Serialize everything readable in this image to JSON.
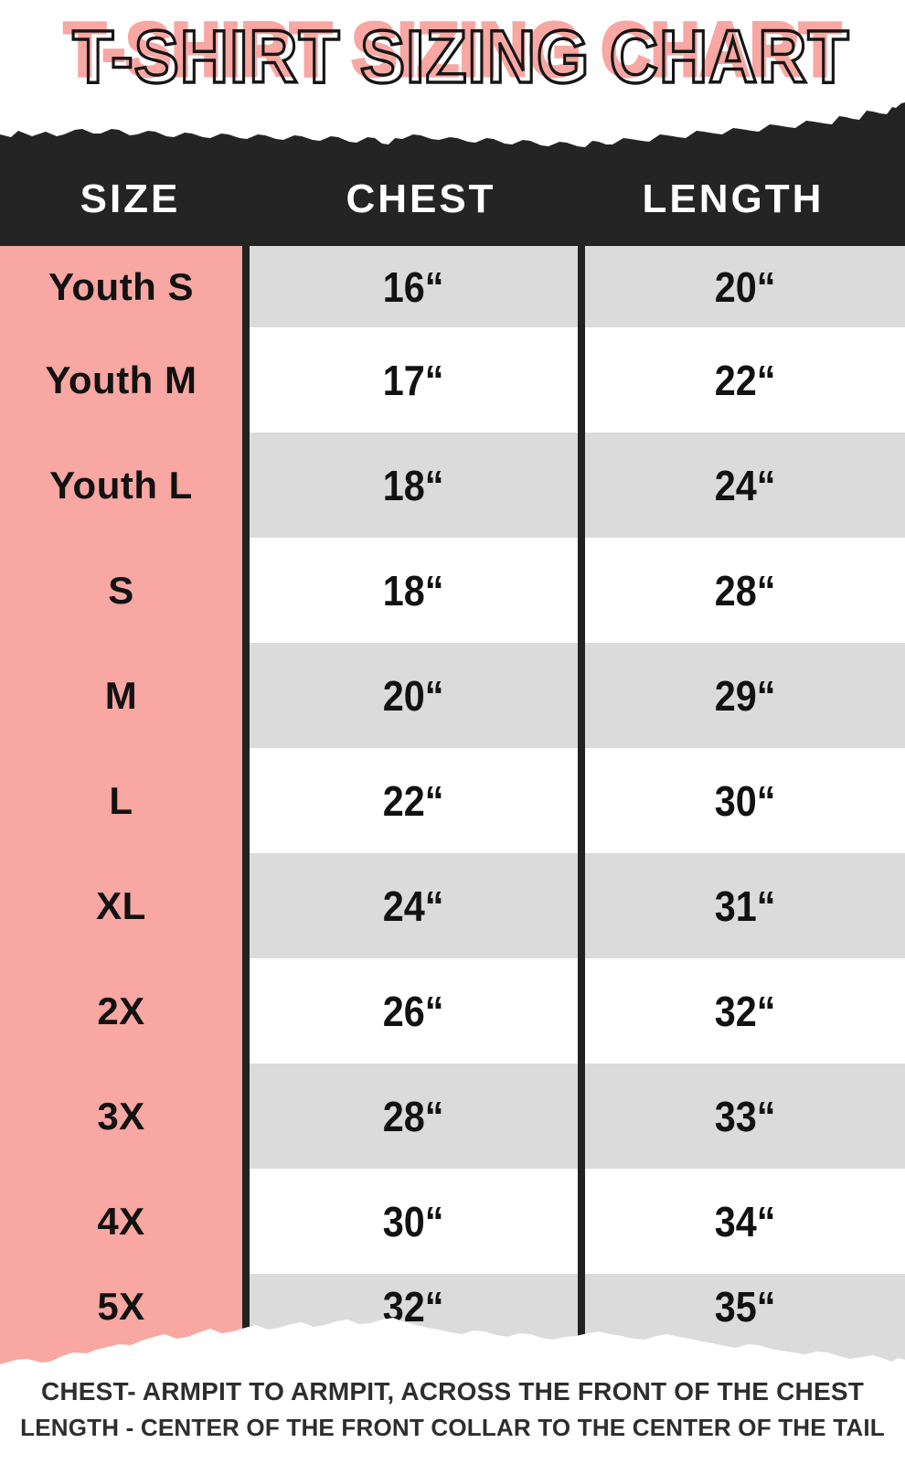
{
  "chart_data": {
    "type": "table",
    "title": "T-SHIRT SIZING CHART",
    "columns": [
      "SIZE",
      "CHEST",
      "LENGTH"
    ],
    "rows": [
      {
        "size": "Youth S",
        "chest": "16“",
        "length": "20“"
      },
      {
        "size": "Youth M",
        "chest": "17“",
        "length": "22“"
      },
      {
        "size": "Youth L",
        "chest": "18“",
        "length": "24“"
      },
      {
        "size": "S",
        "chest": "18“",
        "length": "28“"
      },
      {
        "size": "M",
        "chest": "20“",
        "length": "29“"
      },
      {
        "size": "L",
        "chest": "22“",
        "length": "30“"
      },
      {
        "size": "XL",
        "chest": "24“",
        "length": "31“"
      },
      {
        "size": "2X",
        "chest": "26“",
        "length": "32“"
      },
      {
        "size": "3X",
        "chest": "28“",
        "length": "33“"
      },
      {
        "size": "4X",
        "chest": "30“",
        "length": "34“"
      },
      {
        "size": "5X",
        "chest": "32“",
        "length": "35“"
      }
    ],
    "notes": [
      "CHEST- ARMPIT TO ARMPIT, ACROSS THE FRONT OF THE CHEST",
      "LENGTH - CENTER OF THE FRONT COLLAR TO THE CENTER OF THE TAIL"
    ],
    "layout_hints": {
      "striped_rows": true,
      "first_row_shade": "gray",
      "size_column_style": "solid pink"
    }
  },
  "colors": {
    "title_pink": "#f8a7a2",
    "title_outline": "#161616",
    "header_band": "#242424",
    "size_column_pink": "#f8a7a2",
    "stripe_gray": "#dbdbdb",
    "divider_black": "#222222",
    "cell_text": "#121212",
    "footnote_text": "#2e2e2e"
  }
}
